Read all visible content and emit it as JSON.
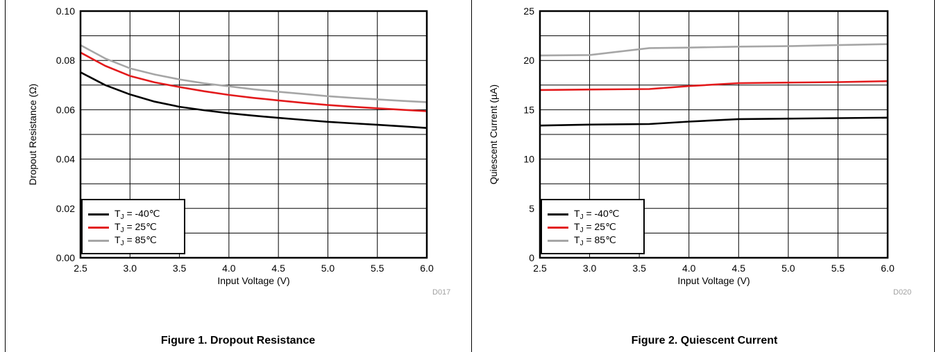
{
  "figures": [
    {
      "caption": "Figure 1. Dropout Resistance",
      "code": "D017",
      "legend": [
        {
          "label_pre": "T",
          "label_sub": "J",
          "label_post": " = -40℃",
          "color": "#000000"
        },
        {
          "label_pre": "T",
          "label_sub": "J",
          "label_post": " =  25℃",
          "color": "#e31a1c"
        },
        {
          "label_pre": "T",
          "label_sub": "J",
          "label_post": " =  85℃",
          "color": "#a6a6a6"
        }
      ]
    },
    {
      "caption": "Figure 2. Quiescent Current",
      "code": "D020",
      "legend": [
        {
          "label_pre": "T",
          "label_sub": "J",
          "label_post": " = -40℃",
          "color": "#000000"
        },
        {
          "label_pre": "T",
          "label_sub": "J",
          "label_post": " =  25℃",
          "color": "#e31a1c"
        },
        {
          "label_pre": "T",
          "label_sub": "J",
          "label_post": " =  85℃",
          "color": "#a6a6a6"
        }
      ]
    }
  ],
  "chart_data": [
    {
      "type": "line",
      "title": "Figure 1. Dropout Resistance",
      "xlabel": "Input Voltage (V)",
      "ylabel": "Dropout Resistance (Ω)",
      "xlim": [
        2.5,
        6.0
      ],
      "ylim": [
        0.0,
        0.1
      ],
      "x_ticks": [
        "2.5",
        "3.0",
        "3.5",
        "4.0",
        "4.5",
        "5.0",
        "5.5",
        "6.0"
      ],
      "y_ticks": [
        "0.00",
        "0.02",
        "0.04",
        "0.06",
        "0.08",
        "0.10"
      ],
      "grid": true,
      "legend_position": "bottom-left",
      "series": [
        {
          "name": "TJ = -40℃",
          "color": "#000000",
          "x": [
            2.5,
            2.75,
            3.0,
            3.25,
            3.5,
            3.75,
            4.0,
            4.25,
            4.5,
            4.75,
            5.0,
            5.25,
            5.5,
            5.75,
            6.0
          ],
          "y": [
            0.0752,
            0.07,
            0.0662,
            0.0633,
            0.0612,
            0.0598,
            0.0586,
            0.0576,
            0.0567,
            0.0559,
            0.0551,
            0.0545,
            0.0539,
            0.0533,
            0.0526
          ]
        },
        {
          "name": "TJ =  25℃",
          "color": "#e31a1c",
          "x": [
            2.5,
            2.75,
            3.0,
            3.25,
            3.5,
            3.75,
            4.0,
            4.25,
            4.5,
            4.75,
            5.0,
            5.25,
            5.5,
            5.75,
            6.0
          ],
          "y": [
            0.0832,
            0.0778,
            0.0737,
            0.0711,
            0.0692,
            0.0675,
            0.066,
            0.0648,
            0.0638,
            0.0628,
            0.0619,
            0.0612,
            0.0606,
            0.06,
            0.0594
          ]
        },
        {
          "name": "TJ =  85℃",
          "color": "#a6a6a6",
          "x": [
            2.5,
            2.75,
            3.0,
            3.25,
            3.5,
            3.75,
            4.0,
            4.25,
            4.5,
            4.75,
            5.0,
            5.25,
            5.5,
            5.75,
            6.0
          ],
          "y": [
            0.0862,
            0.0808,
            0.0768,
            0.0743,
            0.0723,
            0.0707,
            0.0695,
            0.0683,
            0.0673,
            0.0664,
            0.0655,
            0.0648,
            0.0642,
            0.0636,
            0.0631
          ]
        }
      ]
    },
    {
      "type": "line",
      "title": "Figure 2. Quiescent Current",
      "xlabel": "Input Voltage (V)",
      "ylabel": "Quiescent Current (µA)",
      "xlim": [
        2.5,
        6.0
      ],
      "ylim": [
        0,
        25
      ],
      "x_ticks": [
        "2.5",
        "3.0",
        "3.5",
        "4.0",
        "4.5",
        "5.0",
        "5.5",
        "6.0"
      ],
      "y_ticks": [
        "0",
        "5",
        "10",
        "15",
        "20",
        "25"
      ],
      "grid": true,
      "legend_position": "bottom-left",
      "series": [
        {
          "name": "TJ = -40℃",
          "color": "#000000",
          "x": [
            2.5,
            3.0,
            3.6,
            4.0,
            4.5,
            5.0,
            5.5,
            6.0
          ],
          "y": [
            13.4,
            13.5,
            13.55,
            13.8,
            14.05,
            14.1,
            14.15,
            14.2
          ]
        },
        {
          "name": "TJ =  25℃",
          "color": "#e31a1c",
          "x": [
            2.5,
            3.0,
            3.6,
            4.0,
            4.5,
            5.0,
            5.5,
            6.0
          ],
          "y": [
            17.0,
            17.05,
            17.1,
            17.4,
            17.7,
            17.75,
            17.8,
            17.9
          ]
        },
        {
          "name": "TJ =  85℃",
          "color": "#a6a6a6",
          "x": [
            2.5,
            3.0,
            3.6,
            4.0,
            4.5,
            5.0,
            5.5,
            6.0
          ],
          "y": [
            20.5,
            20.55,
            21.25,
            21.3,
            21.4,
            21.45,
            21.55,
            21.65
          ]
        }
      ]
    }
  ]
}
